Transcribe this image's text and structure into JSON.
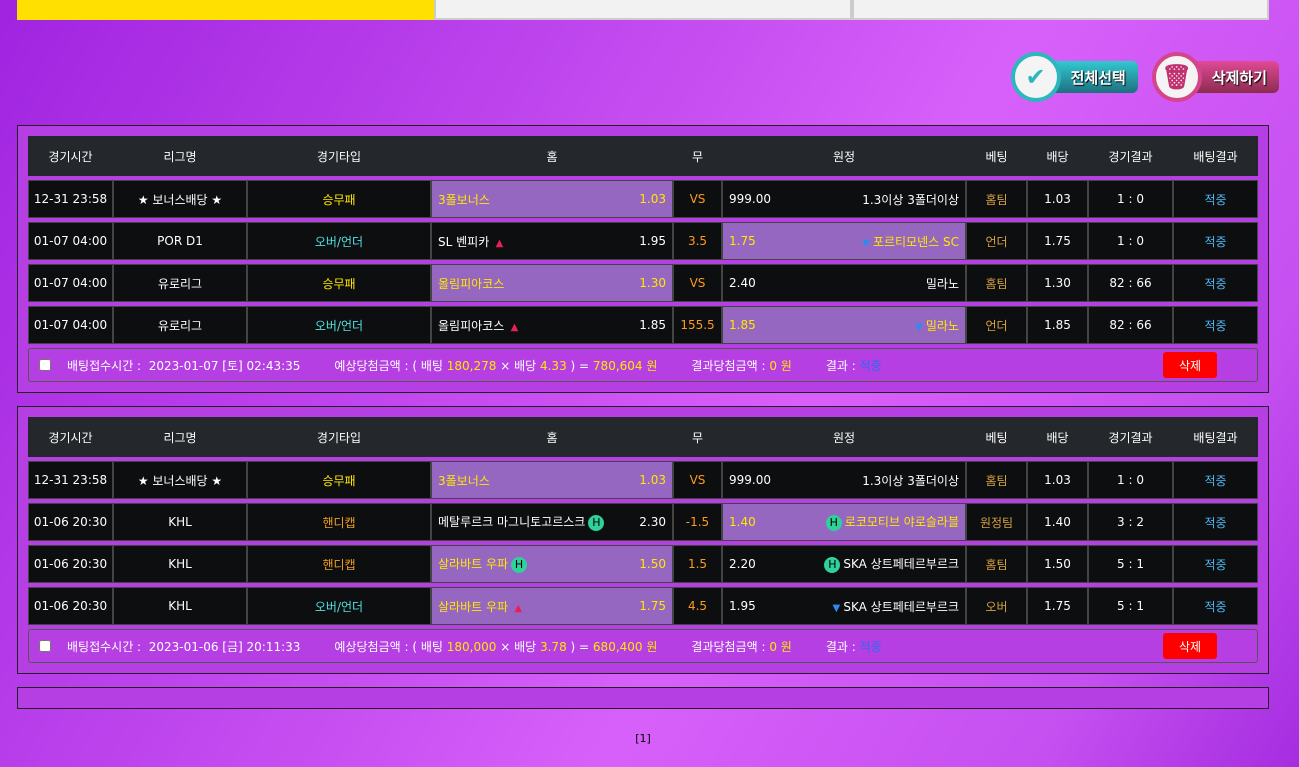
{
  "tabs": [
    {
      "label": "",
      "active": true
    },
    {
      "label": "",
      "active": false
    },
    {
      "label": "",
      "active": false
    }
  ],
  "actions": {
    "select_all": "전체선택",
    "delete": "삭제하기"
  },
  "headers": [
    "경기시간",
    "리그명",
    "경기타입",
    "홈",
    "무",
    "원정",
    "베팅",
    "배당",
    "경기결과",
    "배팅결과"
  ],
  "slips": [
    {
      "rows": [
        {
          "time": "12-31 23:58",
          "league": "★ 보너스배당 ★",
          "type": "승무패",
          "type_color": "y",
          "home": "3폴보너스",
          "home_odds": "1.03",
          "home_mark": "",
          "draw": "VS",
          "away_odds": "999.00",
          "away": "1.3이상 3폴더이상",
          "away_mark": "",
          "pick": "home",
          "bet": "홈팀",
          "odds": "1.03",
          "score": "1 : 0",
          "result": "적중"
        },
        {
          "time": "01-07 04:00",
          "league": "POR D1",
          "type": "오버/언더",
          "type_color": "c",
          "home": "SL 벤피카",
          "home_odds": "1.95",
          "home_mark": "up",
          "draw": "3.5",
          "away_odds": "1.75",
          "away": "포르티모넨스 SC",
          "away_mark": "down",
          "pick": "away",
          "bet": "언더",
          "odds": "1.75",
          "score": "1 : 0",
          "result": "적중"
        },
        {
          "time": "01-07 04:00",
          "league": "유로리그",
          "type": "승무패",
          "type_color": "y",
          "home": "올림피아코스",
          "home_odds": "1.30",
          "home_mark": "",
          "draw": "VS",
          "away_odds": "2.40",
          "away": "밀라노",
          "away_mark": "",
          "pick": "home",
          "bet": "홈팀",
          "odds": "1.30",
          "score": "82 : 66",
          "result": "적중"
        },
        {
          "time": "01-07 04:00",
          "league": "유로리그",
          "type": "오버/언더",
          "type_color": "c",
          "home": "올림피아코스",
          "home_odds": "1.85",
          "home_mark": "up",
          "draw": "155.5",
          "away_odds": "1.85",
          "away": "밀라노",
          "away_mark": "down",
          "pick": "away",
          "bet": "언더",
          "odds": "1.85",
          "score": "82 : 66",
          "result": "적중"
        }
      ],
      "footer": {
        "time_label": "배팅접수시간 :",
        "time": "2023-01-07 [토] 02:43:35",
        "expected_label": "예상당첨금액 : ( 배팅",
        "stake": "180,278",
        "x": "× 배당",
        "total_odds": "4.33",
        "eq": ") =",
        "payout": "780,604 원",
        "won_label": "결과당첨금액 :",
        "won": "0 원",
        "result_label": "결과 :",
        "result": "적중",
        "delete": "삭제"
      }
    },
    {
      "rows": [
        {
          "time": "12-31 23:58",
          "league": "★ 보너스배당 ★",
          "type": "승무패",
          "type_color": "y",
          "home": "3폴보너스",
          "home_odds": "1.03",
          "home_mark": "",
          "draw": "VS",
          "away_odds": "999.00",
          "away": "1.3이상 3폴더이상",
          "away_mark": "",
          "pick": "home",
          "bet": "홈팀",
          "odds": "1.03",
          "score": "1 : 0",
          "result": "적중"
        },
        {
          "time": "01-06 20:30",
          "league": "KHL",
          "type": "핸디캡",
          "type_color": "o",
          "home": "메탈루르크 마그니토고르스크",
          "home_odds": "2.30",
          "home_mark": "H",
          "draw": "-1.5",
          "away_odds": "1.40",
          "away": "로코모티브 야로슬라블",
          "away_mark": "H",
          "pick": "away",
          "bet": "원정팀",
          "odds": "1.40",
          "score": "3 : 2",
          "result": "적중"
        },
        {
          "time": "01-06 20:30",
          "league": "KHL",
          "type": "핸디캡",
          "type_color": "o",
          "home": "살라바트 우파",
          "home_odds": "1.50",
          "home_mark": "H",
          "draw": "1.5",
          "away_odds": "2.20",
          "away": "SKA 상트페테르부르크",
          "away_mark": "H",
          "pick": "home",
          "bet": "홈팀",
          "odds": "1.50",
          "score": "5 : 1",
          "result": "적중"
        },
        {
          "time": "01-06 20:30",
          "league": "KHL",
          "type": "오버/언더",
          "type_color": "c",
          "home": "살라바트 우파",
          "home_odds": "1.75",
          "home_mark": "up",
          "draw": "4.5",
          "away_odds": "1.95",
          "away": "SKA 상트페테르부르크",
          "away_mark": "down",
          "pick": "home",
          "bet": "오버",
          "odds": "1.75",
          "score": "5 : 1",
          "result": "적중"
        }
      ],
      "footer": {
        "time_label": "배팅접수시간 :",
        "time": "2023-01-06 [금] 20:11:33",
        "expected_label": "예상당첨금액 : ( 배팅",
        "stake": "180,000",
        "x": "× 배당",
        "total_odds": "3.78",
        "eq": ") =",
        "payout": "680,400 원",
        "won_label": "결과당첨금액 :",
        "won": "0 원",
        "result_label": "결과 :",
        "result": "적중",
        "delete": "삭제"
      }
    }
  ],
  "pagination": "[1]"
}
